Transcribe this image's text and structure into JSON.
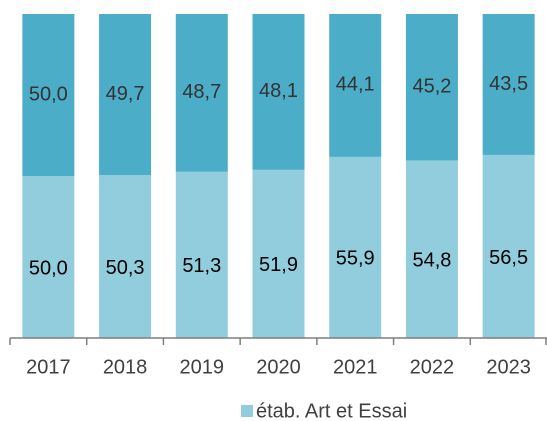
{
  "chart_data": {
    "type": "stacked_bar",
    "categories": [
      "2017",
      "2018",
      "2019",
      "2020",
      "2021",
      "2022",
      "2023"
    ],
    "series": [
      {
        "name": "étab. Art et Essai",
        "color": "#92cddd",
        "values": [
          50.0,
          50.3,
          51.3,
          51.9,
          55.9,
          54.8,
          56.5
        ],
        "value_labels": [
          "50,0",
          "50,3",
          "51,3",
          "51,9",
          "55,9",
          "54,8",
          "56,5"
        ]
      },
      {
        "color": "#4badc8",
        "values": [
          50.0,
          49.7,
          48.7,
          48.1,
          44.1,
          45.2,
          43.5
        ],
        "value_labels": [
          "50,0",
          "49,7",
          "48,7",
          "48,1",
          "44,1",
          "45,2",
          "43,5"
        ]
      }
    ],
    "ylim": [
      0,
      100
    ],
    "legend": "bottom"
  }
}
